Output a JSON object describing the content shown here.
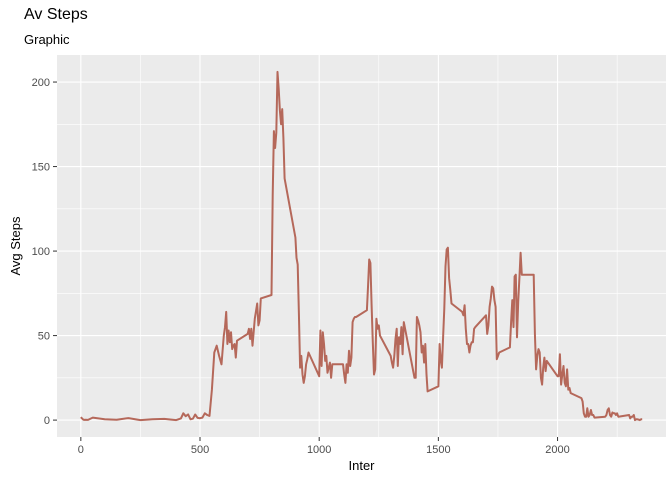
{
  "chart_data": {
    "type": "line",
    "title": "Av Steps",
    "subtitle": "Graphic",
    "xlabel": "Inter",
    "ylabel": "Avg Steps",
    "xlim": [
      -100,
      2455
    ],
    "ylim": [
      -10,
      216
    ],
    "x_ticks": [
      0,
      500,
      1000,
      1500,
      2000
    ],
    "y_ticks": [
      0,
      50,
      100,
      150,
      200
    ],
    "grid": true,
    "line_color": "#B5685A",
    "panel_color": "#EBEBEB",
    "grid_color": "#FFFFFF",
    "series": [
      {
        "x": [
          0,
          10,
          15,
          20,
          30,
          50,
          100,
          150,
          200,
          250,
          300,
          350,
          400,
          420,
          430,
          440,
          450,
          460,
          470,
          480,
          490,
          500,
          510,
          520,
          530,
          540,
          550,
          560,
          570,
          580,
          590,
          600,
          605,
          610,
          615,
          620,
          625,
          630,
          635,
          640,
          645,
          650,
          655,
          700,
          705,
          710,
          715,
          720,
          730,
          740,
          745,
          750,
          755,
          800,
          805,
          810,
          815,
          820,
          825,
          830,
          835,
          840,
          845,
          850,
          855,
          900,
          905,
          910,
          915,
          920,
          925,
          930,
          935,
          940,
          945,
          950,
          955,
          1000,
          1005,
          1010,
          1015,
          1020,
          1025,
          1030,
          1035,
          1040,
          1045,
          1050,
          1055,
          1100,
          1105,
          1110,
          1115,
          1120,
          1125,
          1130,
          1135,
          1140,
          1145,
          1150,
          1155,
          1200,
          1205,
          1210,
          1215,
          1220,
          1225,
          1230,
          1235,
          1240,
          1245,
          1250,
          1255,
          1300,
          1305,
          1310,
          1315,
          1320,
          1325,
          1330,
          1335,
          1340,
          1345,
          1350,
          1355,
          1400,
          1405,
          1410,
          1415,
          1420,
          1425,
          1430,
          1435,
          1440,
          1445,
          1450,
          1455,
          1500,
          1505,
          1510,
          1515,
          1520,
          1525,
          1530,
          1535,
          1540,
          1545,
          1550,
          1555,
          1600,
          1605,
          1610,
          1615,
          1620,
          1625,
          1630,
          1635,
          1640,
          1645,
          1650,
          1655,
          1700,
          1705,
          1710,
          1715,
          1720,
          1725,
          1730,
          1735,
          1740,
          1745,
          1750,
          1755,
          1800,
          1805,
          1810,
          1815,
          1820,
          1825,
          1830,
          1835,
          1840,
          1845,
          1850,
          1855,
          1900,
          1905,
          1910,
          1915,
          1920,
          1925,
          1930,
          1935,
          1940,
          1945,
          1950,
          1955,
          2000,
          2005,
          2010,
          2015,
          2020,
          2025,
          2030,
          2035,
          2040,
          2045,
          2050,
          2055,
          2100,
          2105,
          2110,
          2115,
          2120,
          2125,
          2130,
          2135,
          2140,
          2145,
          2150,
          2155,
          2200,
          2205,
          2210,
          2215,
          2220,
          2225,
          2230,
          2235,
          2240,
          2245,
          2250,
          2255,
          2300,
          2305,
          2310,
          2315,
          2320,
          2325,
          2330,
          2335,
          2340,
          2345,
          2350,
          2355
        ],
        "y": [
          1.7,
          0.3,
          0.1,
          0.2,
          0.1,
          1.5,
          0.5,
          0.2,
          1.2,
          0.0,
          0.5,
          0.7,
          0.0,
          1.0,
          4.0,
          2.3,
          3.4,
          0.5,
          0.8,
          3.3,
          1.3,
          1.1,
          1.5,
          4.0,
          3.0,
          2.5,
          18.0,
          40.0,
          44.0,
          38.0,
          33.0,
          50.0,
          55.0,
          64.0,
          45.0,
          53.0,
          46.0,
          52.0,
          42.0,
          44.0,
          45.0,
          37.0,
          47.0,
          51.0,
          54.0,
          48.0,
          54.0,
          44.0,
          60.0,
          69.0,
          56.0,
          59.0,
          72.0,
          74.0,
          133.0,
          171.0,
          161.0,
          170.0,
          206.0,
          196.0,
          183.0,
          175.0,
          184.0,
          167.0,
          143.0,
          108.0,
          96.0,
          92.0,
          63.0,
          31.0,
          38.0,
          27.0,
          22.0,
          26.0,
          33.0,
          36.0,
          40.0,
          26.0,
          53.0,
          32.0,
          52.0,
          45.0,
          35.0,
          38.0,
          28.0,
          31.0,
          34.0,
          25.0,
          33.0,
          33.0,
          27.0,
          22.0,
          33.0,
          28.0,
          41.0,
          32.0,
          37.0,
          58.0,
          60.0,
          61.0,
          61.0,
          65.0,
          80.0,
          95.0,
          93.0,
          68.0,
          46.0,
          27.0,
          30.0,
          60.0,
          54.0,
          56.0,
          50.0,
          38.0,
          34.0,
          31.0,
          38.0,
          48.0,
          54.0,
          32.0,
          49.0,
          45.0,
          55.0,
          39.0,
          58.0,
          25.0,
          25.0,
          61.0,
          59.0,
          56.0,
          52.0,
          40.0,
          44.0,
          34.0,
          45.0,
          27.0,
          17.0,
          20.0,
          45.0,
          35.0,
          31.0,
          49.0,
          66.0,
          91.0,
          101.0,
          102.0,
          84.0,
          77.0,
          69.0,
          64.0,
          62.0,
          68.0,
          54.0,
          45.0,
          45.0,
          40.0,
          44.0,
          46.0,
          46.0,
          54.0,
          55.0,
          62.0,
          51.0,
          56.0,
          67.0,
          72.0,
          79.0,
          78.0,
          71.0,
          67.0,
          36.0,
          38.0,
          40.0,
          43.0,
          58.0,
          71.0,
          55.0,
          85.0,
          86.0,
          49.0,
          70.0,
          84.0,
          99.0,
          86.0,
          86.0,
          86.0,
          51.0,
          30.0,
          38.0,
          42.0,
          40.0,
          25.0,
          21.0,
          31.0,
          37.0,
          29.0,
          35.0,
          26.0,
          26.0,
          39.0,
          21.0,
          27.0,
          32.0,
          22.0,
          20.0,
          30.0,
          18.0,
          19.0,
          16.0,
          13.0,
          11.0,
          4.0,
          2.0,
          2.0,
          7.0,
          2.0,
          3.0,
          6.0,
          3.0,
          3.0,
          1.5,
          2.0,
          3.0,
          6.0,
          7.0,
          3.0,
          2.0,
          4.5,
          4.0,
          4.0,
          3.0,
          4.0,
          2.0,
          3.0,
          1.0,
          2.0,
          2.0,
          3.0,
          0.0,
          0.5,
          0.5,
          0.3,
          0.0,
          0.5,
          0.5
        ]
      }
    ]
  }
}
